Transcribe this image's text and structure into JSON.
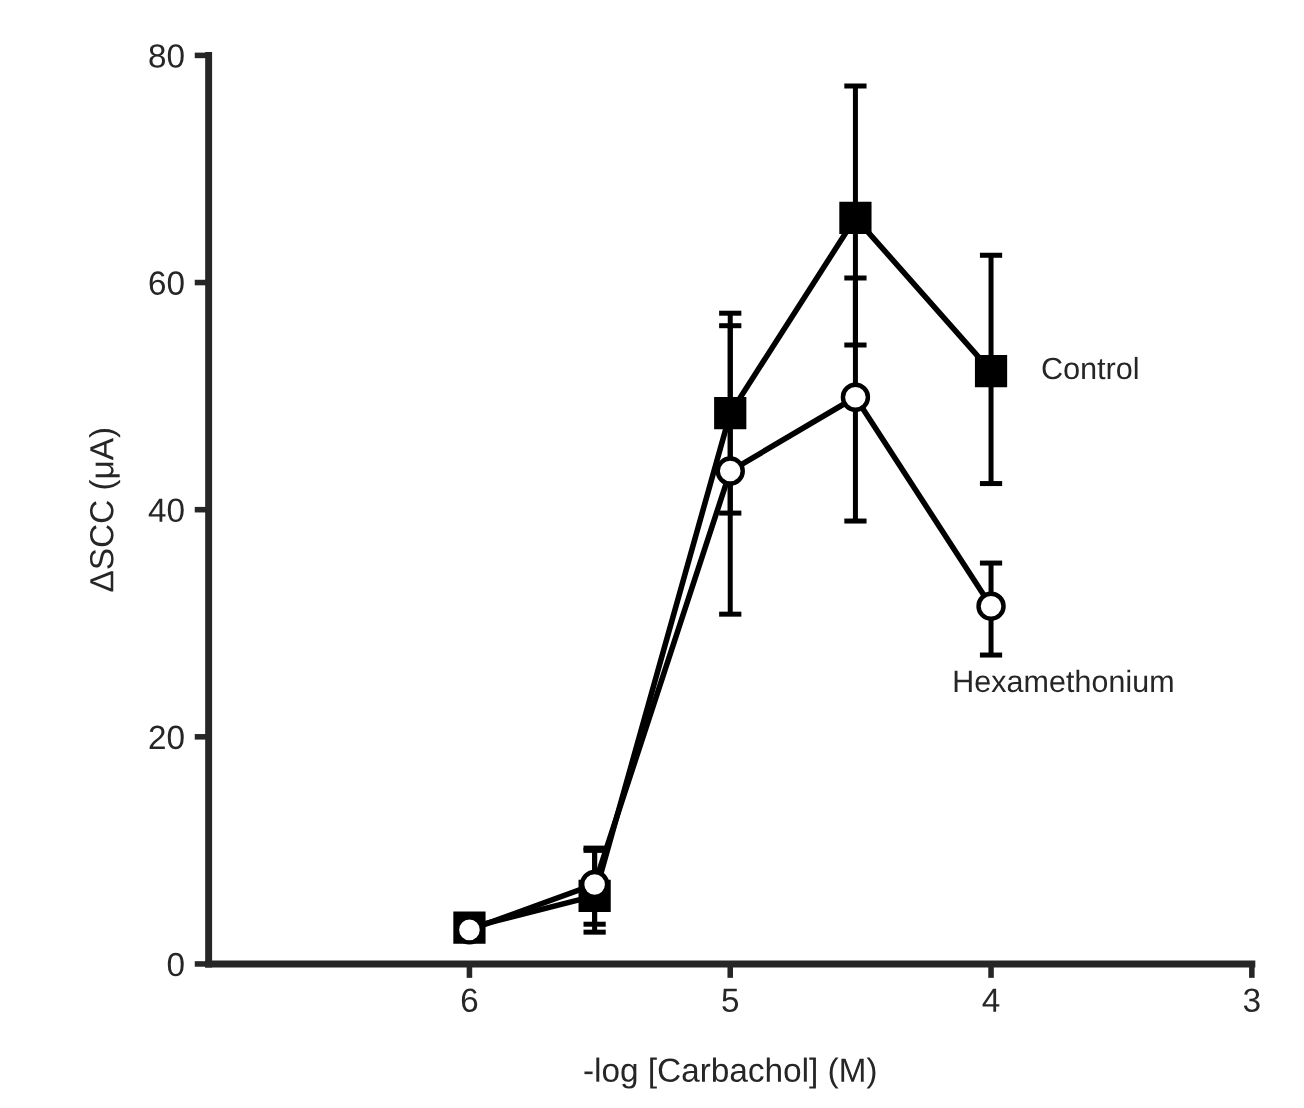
{
  "chart_data": {
    "type": "line",
    "xlabel": "-log [Carbachol] (M)",
    "ylabel": "ΔSCC (μA)",
    "x": [
      6,
      5.52,
      5,
      4.52,
      4
    ],
    "xlim": [
      7,
      3
    ],
    "xticks": [
      6,
      5,
      4,
      3
    ],
    "ylim": [
      0,
      80
    ],
    "yticks": [
      0,
      20,
      40,
      60,
      80
    ],
    "grid": false,
    "legend": false,
    "series": [
      {
        "name": "Control",
        "color": "#000000",
        "marker": "square",
        "values": [
          3.2,
          6,
          48.5,
          65.7,
          52.2
        ],
        "errors": [
          null,
          [
            2.8,
            10.2
          ],
          [
            39.7,
            57.3
          ],
          [
            54.5,
            77.3
          ],
          [
            42.3,
            62.4
          ]
        ]
      },
      {
        "name": "Hexamethonium",
        "color": "#000000",
        "marker": "circle",
        "values": [
          3,
          7,
          43.4,
          49.9,
          31.5
        ],
        "errors": [
          null,
          [
            3.5,
            10
          ],
          [
            30.8,
            56.2
          ],
          [
            39,
            60.4
          ],
          [
            27.2,
            35.3
          ]
        ]
      }
    ]
  }
}
